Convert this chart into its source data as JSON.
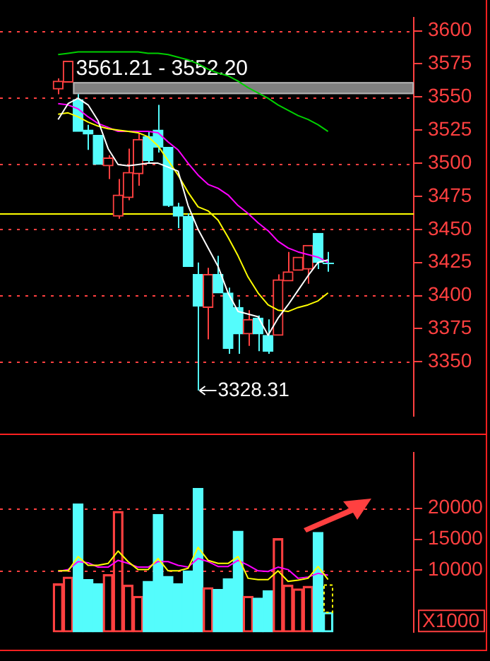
{
  "chart_data": [
    {
      "type": "candlestick",
      "categories": [
        null,
        null,
        null,
        null,
        null,
        null,
        null,
        null,
        null,
        null,
        null,
        null,
        null,
        null,
        null,
        null,
        null,
        null,
        null,
        null,
        null,
        null,
        null,
        null,
        null,
        null,
        null,
        null
      ],
      "ohlc": [
        [
          3556,
          3564,
          3552,
          3562
        ],
        [
          3561.21,
          3577,
          3561.21,
          3577
        ],
        [
          3548,
          3552.2,
          3524,
          3524
        ],
        [
          3525,
          3529,
          3510,
          3522
        ],
        [
          3521,
          3521,
          3499,
          3499
        ],
        [
          3498,
          3506,
          3488,
          3504
        ],
        [
          3460,
          3488,
          3458,
          3476
        ],
        [
          3474,
          3511,
          3472,
          3493
        ],
        [
          3492,
          3523,
          3483,
          3518
        ],
        [
          3520,
          3524,
          3500,
          3502
        ],
        [
          3525,
          3544,
          3508,
          3512
        ],
        [
          3512,
          3512,
          3467,
          3468
        ],
        [
          3467,
          3470,
          3451,
          3460
        ],
        [
          3460,
          3462,
          3422,
          3422
        ],
        [
          3416,
          3425,
          3328.31,
          3392
        ],
        [
          3391,
          3421,
          3367,
          3416
        ],
        [
          3416,
          3430,
          3402,
          3402
        ],
        [
          3402,
          3406,
          3356,
          3360
        ],
        [
          3391,
          3397,
          3356,
          3371
        ],
        [
          3371,
          3389,
          3362,
          3382
        ],
        [
          3383,
          3385,
          3358,
          3371
        ],
        [
          3370,
          3382,
          3356,
          3358
        ],
        [
          3370,
          3416,
          3370,
          3412
        ],
        [
          3411,
          3433,
          3411,
          3418
        ],
        [
          3419,
          3429,
          3419,
          3429
        ],
        [
          3420,
          3438,
          3409,
          3438
        ],
        [
          3447,
          3447,
          3420,
          3425
        ],
        [
          3425,
          3433,
          3418,
          3425
        ]
      ],
      "colors": [
        "#ff4040",
        "#ff4040",
        "#54fcfc",
        "#54fcfc",
        "#54fcfc",
        "#ff4040",
        "#ff4040",
        "#ff4040",
        "#ff4040",
        "#54fcfc",
        "#54fcfc",
        "#54fcfc",
        "#54fcfc",
        "#54fcfc",
        "#54fcfc",
        "#ff4040",
        "#54fcfc",
        "#54fcfc",
        "#54fcfc",
        "#ff4040",
        "#54fcfc",
        "#54fcfc",
        "#ff4040",
        "#ff4040",
        "#ff4040",
        "#ff4040",
        "#54fcfc",
        "#54fcfc"
      ],
      "series": [
        {
          "type": "line",
          "color": "#ffffff",
          "values": [
            3533,
            3545,
            3549,
            3544,
            3532,
            3511,
            3499,
            3498,
            3499,
            3500,
            3500,
            3497,
            3494,
            3468,
            3450,
            3436,
            3422,
            3402,
            3388,
            3386,
            3384,
            3370,
            3383,
            3393,
            3404,
            3415,
            3425,
            3427
          ]
        },
        {
          "type": "line",
          "color": "#ffff00",
          "values": [
            3537,
            3538,
            3535,
            3531,
            3528,
            3526,
            3525,
            3524,
            3523,
            3520,
            3513,
            3502,
            3491,
            3478,
            3467,
            3464,
            3457,
            3444,
            3430,
            3414,
            3402,
            3393,
            3389,
            3388,
            3391,
            3393,
            3396,
            3402
          ]
        },
        {
          "type": "line",
          "color": "#ff00ff",
          "values": [
            3545,
            3544,
            3541,
            3535,
            3530,
            3527,
            3524,
            3524,
            3524,
            3524,
            3523,
            3516,
            3510,
            3500,
            3491,
            3484,
            3481,
            3476,
            3468,
            3462,
            3455,
            3449,
            3441,
            3436,
            3433,
            3431,
            3429,
            3425
          ]
        },
        {
          "type": "line",
          "color": "#00d000",
          "values": [
            3582,
            3583,
            3584,
            3584,
            3584,
            3584,
            3584,
            3584,
            3584,
            3583,
            3583,
            3582,
            3580,
            3578,
            3575,
            3571,
            3568,
            3566,
            3562,
            3557,
            3553,
            3549,
            3544,
            3540,
            3536,
            3533,
            3529,
            3524
          ]
        }
      ],
      "ylim": [
        3309,
        3610
      ],
      "yticks": [
        3350,
        3375,
        3400,
        3425,
        3450,
        3475,
        3500,
        3525,
        3550,
        3575,
        3600
      ],
      "grid": "y",
      "ref_lines": [
        {
          "axis": "y",
          "value": 3462,
          "color": "#ffff00"
        }
      ],
      "bands": [
        {
          "axis": "y",
          "from": 3552.2,
          "to": 3561.21,
          "label": "3561.21 - 3552.20",
          "color": "#808080"
        }
      ],
      "annotations": [
        "3328.31"
      ]
    },
    {
      "type": "bar",
      "stacked": true,
      "categories": [
        null,
        null,
        null,
        null,
        null,
        null,
        null,
        null,
        null,
        null,
        null,
        null,
        null,
        null,
        null,
        null,
        null,
        null,
        null,
        null,
        null,
        null,
        null,
        null,
        null,
        null,
        null,
        null
      ],
      "series": [
        {
          "colors": [
            "#ff4040",
            "#ff4040",
            "#54fcfc",
            "#54fcfc",
            "#54fcfc",
            "#ff4040",
            "#ff4040",
            "#ff4040",
            "#ff4040",
            "#54fcfc",
            "#54fcfc",
            "#54fcfc",
            "#54fcfc",
            "#54fcfc",
            "#54fcfc",
            "#ff4040",
            "#54fcfc",
            "#54fcfc",
            "#54fcfc",
            "#ff4040",
            "#54fcfc",
            "#54fcfc",
            "#ff4040",
            "#ff4040",
            "#ff4040",
            "#ff4040",
            "#54fcfc",
            "#54fcfc"
          ],
          "values": [
            7800,
            8900,
            20700,
            8500,
            7800,
            9300,
            19500,
            7600,
            5800,
            8200,
            19000,
            9000,
            7800,
            9900,
            23200,
            7200,
            6900,
            8600,
            16300,
            5800,
            5500,
            6700,
            15100,
            7600,
            7000,
            7400,
            16100,
            3200
          ]
        },
        {
          "color": "#ffff00",
          "line_style": "dotted",
          "values": [
            null,
            null,
            null,
            null,
            null,
            null,
            null,
            null,
            null,
            null,
            null,
            null,
            null,
            null,
            null,
            null,
            null,
            null,
            null,
            null,
            null,
            null,
            null,
            null,
            null,
            null,
            null,
            4400
          ]
        },
        {
          "type": "line",
          "color": "#ffff00",
          "values": [
            9900,
            9900,
            12200,
            10800,
            10800,
            11100,
            13100,
            11400,
            10100,
            10100,
            11900,
            9900,
            9900,
            10300,
            13700,
            11600,
            11100,
            11100,
            12200,
            8700,
            8500,
            8500,
            9900,
            8200,
            8400,
            8700,
            10600,
            8500
          ]
        },
        {
          "type": "line",
          "color": "#ff00ff",
          "values": [
            9800,
            10100,
            11400,
            11200,
            10500,
            10500,
            11600,
            11100,
            10500,
            10500,
            11400,
            11400,
            10800,
            10500,
            11900,
            11400,
            10600,
            10600,
            11600,
            10800,
            9900,
            9800,
            10500,
            10100,
            8700,
            8900,
            9500,
            9200
          ]
        }
      ],
      "ylim": [
        0,
        29000
      ],
      "yticks": [
        10000,
        15000,
        20000
      ],
      "grid": "y",
      "annotations": [
        "X1000"
      ]
    }
  ]
}
